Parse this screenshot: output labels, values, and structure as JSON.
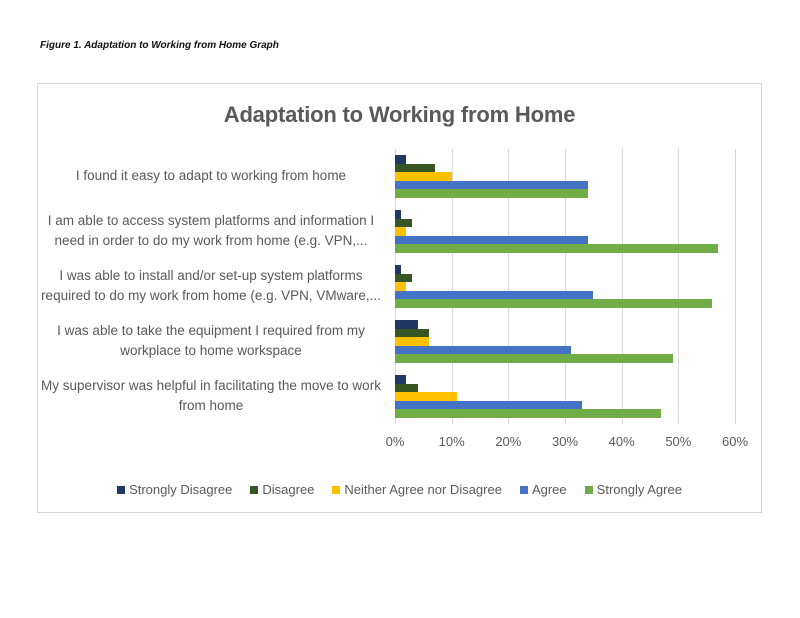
{
  "caption": "Figure 1. Adaptation to Working from Home Graph",
  "chart_data": {
    "type": "bar",
    "orientation": "horizontal",
    "title": "Adaptation to Working from Home",
    "xlabel": "",
    "ylabel": "",
    "xlim": [
      0,
      60
    ],
    "x_ticks": [
      "0%",
      "10%",
      "20%",
      "30%",
      "40%",
      "50%",
      "60%"
    ],
    "grid": "vertical",
    "legend_position": "bottom",
    "categories": [
      "I found it easy to adapt to working from home",
      "I am able to access system platforms and information I need in order to do my work from home (e.g. VPN,...",
      "I was able to install and/or set-up system platforms required to do my work from home (e.g. VPN, VMware,...",
      "I was able to take the equipment I required from my workplace to home workspace",
      "My supervisor was helpful in facilitating the move to work from home"
    ],
    "category_lines": [
      [
        "I found it easy to adapt to working from home"
      ],
      [
        "I am able to access system platforms and information I",
        "need in order to do my work from home (e.g. VPN,..."
      ],
      [
        "I was able to install and/or set-up system platforms",
        "required to do my work from home (e.g. VPN, VMware,..."
      ],
      [
        "I was able to take the equipment I required from my",
        "workplace to home workspace"
      ],
      [
        "My supervisor was helpful in facilitating the move to work",
        "from home"
      ]
    ],
    "series": [
      {
        "name": "Strongly Disagree",
        "color": "#1f3864",
        "values": [
          2,
          1,
          1,
          4,
          2
        ]
      },
      {
        "name": "Disagree",
        "color": "#375623",
        "values": [
          7,
          3,
          3,
          6,
          4
        ]
      },
      {
        "name": "Neither Agree nor Disagree",
        "color": "#ffc000",
        "values": [
          10,
          2,
          2,
          6,
          11
        ]
      },
      {
        "name": "Agree",
        "color": "#4472c4",
        "values": [
          34,
          34,
          35,
          31,
          33
        ]
      },
      {
        "name": "Strongly Agree",
        "color": "#70ad47",
        "values": [
          34,
          57,
          56,
          49,
          47
        ]
      }
    ],
    "unit": "%"
  }
}
